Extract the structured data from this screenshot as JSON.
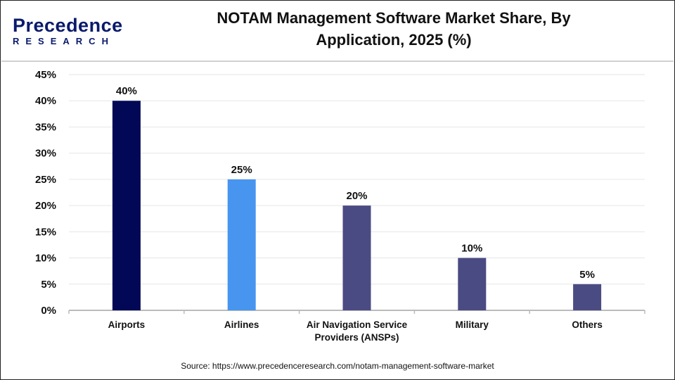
{
  "logo": {
    "line1": "Precedence",
    "line2": "RESEARCH"
  },
  "title": "NOTAM Management Software Market Share, By Application, 2025 (%)",
  "source": "Source: https://www.precedenceresearch.com/notam-management-software-market",
  "chart_data": {
    "type": "bar",
    "title": "NOTAM Management Software Market Share, By Application, 2025 (%)",
    "categories": [
      "Airports",
      "Airlines",
      "Air Navigation Service Providers (ANSPs)",
      "Military",
      "Others"
    ],
    "category_lines": [
      [
        "Airports"
      ],
      [
        "Airlines"
      ],
      [
        "Air Navigation Service",
        "Providers (ANSPs)"
      ],
      [
        "Military"
      ],
      [
        "Others"
      ]
    ],
    "values": [
      40,
      25,
      20,
      10,
      5
    ],
    "data_labels": [
      "40%",
      "25%",
      "20%",
      "10%",
      "5%"
    ],
    "colors": [
      "#020856",
      "#4895EF",
      "#4B4B83",
      "#4B4B83",
      "#4B4B83"
    ],
    "ylim": [
      0,
      45
    ],
    "yticks": [
      "0%",
      "5%",
      "10%",
      "15%",
      "20%",
      "25%",
      "30%",
      "35%",
      "40%",
      "45%"
    ],
    "grid": true,
    "xlabel": "",
    "ylabel": ""
  }
}
